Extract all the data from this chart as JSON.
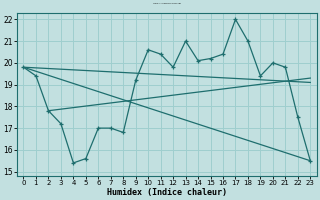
{
  "title": "Courbe de l'humidex pour Farnborough",
  "xlabel": "Humidex (Indice chaleur)",
  "xlim": [
    -0.5,
    23.5
  ],
  "ylim": [
    14.8,
    22.3
  ],
  "yticks": [
    15,
    16,
    17,
    18,
    19,
    20,
    21,
    22
  ],
  "xticks": [
    0,
    1,
    2,
    3,
    4,
    5,
    6,
    7,
    8,
    9,
    10,
    11,
    12,
    13,
    14,
    15,
    16,
    17,
    18,
    19,
    20,
    21,
    22,
    23
  ],
  "bg_color": "#c2e0e0",
  "grid_color": "#9ecece",
  "line_color": "#1e6e6e",
  "main_x": [
    0,
    1,
    2,
    3,
    4,
    5,
    6,
    7,
    8,
    9,
    10,
    11,
    12,
    13,
    14,
    15,
    16,
    17,
    18,
    19,
    20,
    21,
    22,
    23
  ],
  "main_y": [
    19.8,
    19.4,
    17.8,
    17.2,
    15.4,
    15.6,
    17.0,
    17.0,
    16.8,
    19.2,
    20.6,
    20.4,
    19.8,
    21.0,
    20.1,
    20.2,
    20.4,
    22.0,
    21.0,
    19.4,
    20.0,
    19.8,
    17.5,
    15.5
  ],
  "line1_x": [
    0,
    23
  ],
  "line1_y": [
    19.8,
    19.1
  ],
  "line2_x": [
    0,
    23
  ],
  "line2_y": [
    19.8,
    15.5
  ],
  "line3_x": [
    2,
    23
  ],
  "line3_y": [
    17.8,
    19.3
  ]
}
